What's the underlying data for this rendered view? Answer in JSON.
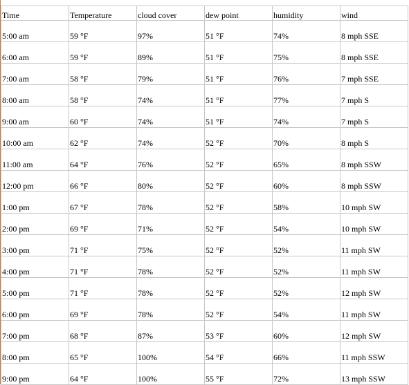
{
  "table": {
    "columns": [
      "Time",
      "Temperature",
      "cloud cover",
      "dew point",
      "humidity",
      "wind"
    ],
    "rows": [
      [
        "5:00 am",
        "59 °F",
        "97%",
        "51 °F",
        "74%",
        "8 mph SSE"
      ],
      [
        "6:00 am",
        "59 °F",
        "89%",
        "51 °F",
        "75%",
        "8 mph SSE"
      ],
      [
        "7:00 am",
        "58 °F",
        "79%",
        "51 °F",
        "76%",
        "7 mph SSE"
      ],
      [
        "8:00 am",
        "58 °F",
        "74%",
        "51 °F",
        "77%",
        "7 mph S"
      ],
      [
        "9:00 am",
        "60 °F",
        "74%",
        "51 °F",
        "74%",
        "7 mph S"
      ],
      [
        "10:00 am",
        "62 °F",
        "74%",
        "52 °F",
        "70%",
        "8 mph S"
      ],
      [
        "11:00 am",
        "64 °F",
        "76%",
        "52 °F",
        "65%",
        "8 mph SSW"
      ],
      [
        "12:00 pm",
        "66 °F",
        "80%",
        "52 °F",
        "60%",
        "8 mph SSW"
      ],
      [
        "1:00 pm",
        "67 °F",
        "78%",
        "52 °F",
        "58%",
        "10 mph SW"
      ],
      [
        "2:00 pm",
        "69 °F",
        "71%",
        "52 °F",
        "54%",
        "10 mph SW"
      ],
      [
        "3:00 pm",
        "71 °F",
        "75%",
        "52 °F",
        "52%",
        "11 mph SW"
      ],
      [
        "4:00 pm",
        "71 °F",
        "78%",
        "52 °F",
        "52%",
        "11 mph SW"
      ],
      [
        "5:00 pm",
        "71 °F",
        "78%",
        "52 °F",
        "52%",
        "12 mph SW"
      ],
      [
        "6:00 pm",
        "69 °F",
        "78%",
        "52 °F",
        "54%",
        "11 mph SW"
      ],
      [
        "7:00 pm",
        "68 °F",
        "87%",
        "53 °F",
        "60%",
        "12 mph SW"
      ],
      [
        "8:00 pm",
        "65 °F",
        "100%",
        "54 °F",
        "66%",
        "11 mph SSW"
      ],
      [
        "9:00 pm",
        "64 °F",
        "100%",
        "55 °F",
        "72%",
        "13 mph SSW"
      ]
    ]
  }
}
